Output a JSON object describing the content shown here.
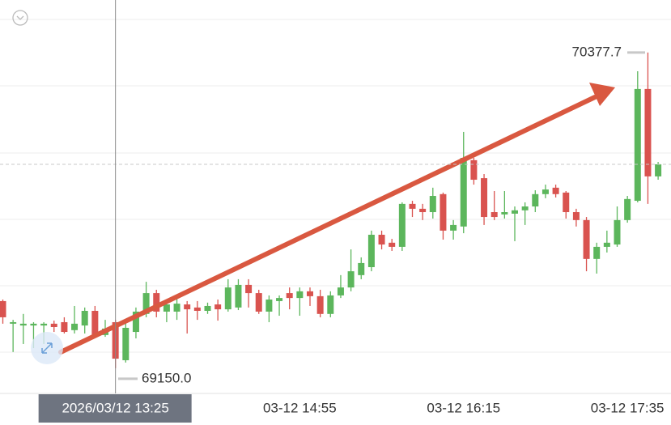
{
  "chart_data": {
    "type": "candlestick",
    "categories": [
      null,
      null,
      null,
      null,
      null,
      null,
      null,
      null,
      null,
      null,
      null,
      "2026/03/12 13:25",
      null,
      null,
      null,
      null,
      null,
      null,
      null,
      null,
      null,
      null,
      null,
      null,
      null,
      null,
      null,
      null,
      null,
      "03-12 14:55",
      null,
      null,
      null,
      null,
      null,
      null,
      null,
      null,
      null,
      null,
      null,
      null,
      null,
      null,
      null,
      "03-12 16:15",
      null,
      null,
      null,
      null,
      null,
      null,
      null,
      null,
      null,
      null,
      null,
      null,
      null,
      null,
      null,
      "03-12 17:35",
      null,
      null,
      null
    ],
    "open": [
      69411,
      69323,
      69316,
      69316,
      69316,
      69323,
      69329,
      69298,
      69316,
      69373,
      69279,
      69329,
      69181,
      69291,
      69361,
      69442,
      69370,
      69370,
      69398,
      69386,
      69373,
      69398,
      69379,
      69386,
      69474,
      69442,
      69370,
      69411,
      69442,
      69423,
      69449,
      69430,
      69361,
      69433,
      69464,
      69512,
      69543,
      69669,
      69638,
      69622,
      69789,
      69770,
      69757,
      69827,
      69685,
      69701,
      69959,
      69889,
      69757,
      69748,
      69751,
      69764,
      69779,
      69827,
      69852,
      69833,
      69757,
      69726,
      69575,
      69622,
      69631,
      69726,
      69801,
      70236,
      69896
    ],
    "high": [
      69417,
      69338,
      69361,
      69329,
      69329,
      69335,
      69348,
      69392,
      69386,
      69392,
      69338,
      69338,
      69329,
      69386,
      69486,
      69455,
      69417,
      69423,
      69411,
      69411,
      69405,
      69417,
      69496,
      69496,
      69496,
      69455,
      69433,
      69433,
      69464,
      69464,
      69464,
      69455,
      69449,
      69512,
      69612,
      69581,
      69685,
      69685,
      69653,
      69795,
      69801,
      69789,
      69852,
      69833,
      69726,
      70069,
      69968,
      69905,
      69839,
      69839,
      69779,
      69795,
      69842,
      69864,
      69864,
      69839,
      69770,
      69738,
      69638,
      69685,
      69779,
      69820,
      70305,
      70377.7,
      69952
    ],
    "low": [
      69323,
      69213,
      69244,
      69228,
      69244,
      69291,
      69285,
      69285,
      69285,
      69272,
      69272,
      69150.0,
      69172,
      69266,
      69348,
      69348,
      69329,
      69338,
      69285,
      69338,
      69361,
      69335,
      69370,
      69376,
      69386,
      69361,
      69329,
      69354,
      69379,
      69354,
      69392,
      69348,
      69348,
      69423,
      69449,
      69496,
      69527,
      69612,
      69606,
      69606,
      69738,
      69726,
      69732,
      69650,
      69650,
      69675,
      69864,
      69707,
      69726,
      69732,
      69644,
      69707,
      69757,
      69811,
      69814,
      69732,
      69701,
      69527,
      69518,
      69600,
      69622,
      69716,
      69795,
      69789,
      69883
    ],
    "close": [
      69348,
      69329,
      69323,
      69323,
      69323,
      69310,
      69291,
      69323,
      69373,
      69279,
      69304,
      69187,
      69307,
      69370,
      69442,
      69370,
      69398,
      69401,
      69379,
      69373,
      69392,
      69379,
      69464,
      69474,
      69442,
      69370,
      69417,
      69423,
      69423,
      69449,
      69430,
      69361,
      69433,
      69464,
      69527,
      69559,
      69669,
      69631,
      69622,
      69789,
      69770,
      69757,
      69820,
      69685,
      69707,
      69968,
      69883,
      69738,
      69738,
      69757,
      69764,
      69779,
      69827,
      69845,
      69827,
      69757,
      69726,
      69575,
      69622,
      69638,
      69726,
      69808,
      70236,
      69896,
      69943
    ],
    "up_color": "#5cb65c",
    "down_color": "#d9534f",
    "ylim": [
      69055,
      70582
    ],
    "annotations": [
      {
        "value": 70377.7,
        "label": "70377.7"
      },
      {
        "value": 69150.0,
        "label": "69150.0"
      }
    ]
  }
}
